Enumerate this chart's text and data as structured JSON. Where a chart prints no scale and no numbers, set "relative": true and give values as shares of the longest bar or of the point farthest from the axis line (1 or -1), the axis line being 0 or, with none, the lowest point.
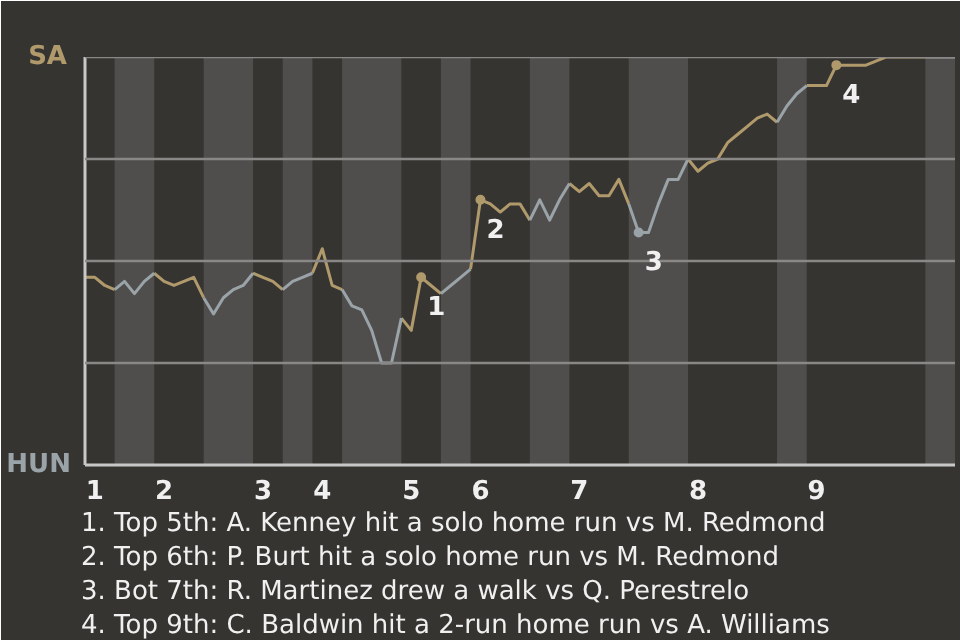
{
  "chart_data": {
    "type": "line",
    "relative": true,
    "categories": [
      null,
      "1",
      null,
      null,
      null,
      null,
      null,
      null,
      "2",
      null,
      null,
      null,
      null,
      null,
      null,
      null,
      null,
      null,
      "3",
      null,
      null,
      null,
      null,
      null,
      "4",
      null,
      null,
      null,
      null,
      null,
      null,
      null,
      null,
      "5",
      null,
      null,
      null,
      null,
      null,
      null,
      "6",
      null,
      null,
      null,
      null,
      null,
      null,
      null,
      null,
      null,
      "7",
      null,
      null,
      null,
      null,
      null,
      null,
      null,
      null,
      null,
      null,
      null,
      "8",
      null,
      null,
      null,
      null,
      null,
      null,
      null,
      null,
      null,
      null,
      null,
      "9",
      null,
      null,
      null,
      null,
      null,
      null,
      null,
      null,
      null,
      null,
      null,
      null,
      null,
      null
    ],
    "series": [
      {
        "color": "#b09a6c",
        "values": [
          0.46,
          0.46,
          0.44,
          0.43,
          null,
          null,
          null,
          0.47,
          0.45,
          0.44,
          0.45,
          0.46,
          0.41,
          null,
          null,
          null,
          null,
          0.47,
          0.46,
          0.45,
          0.43,
          null,
          null,
          0.47,
          0.53,
          0.44,
          0.43,
          null,
          null,
          null,
          null,
          null,
          0.36,
          0.33,
          0.46,
          0.44,
          0.42,
          null,
          null,
          0.48,
          0.65,
          0.64,
          0.62,
          0.64,
          0.64,
          0.6,
          null,
          null,
          null,
          0.69,
          0.67,
          0.69,
          0.66,
          0.66,
          0.7,
          0.64,
          null,
          null,
          null,
          null,
          null,
          0.75,
          0.72,
          0.74,
          0.75,
          0.79,
          0.81,
          0.83,
          0.85,
          0.86,
          0.84,
          null,
          null,
          0.93,
          0.93,
          0.93,
          0.98,
          0.98,
          0.98,
          0.98,
          0.99,
          1.0,
          1.0,
          1.0,
          1.0,
          1.0,
          null,
          null,
          null
        ]
      },
      {
        "color": "#9aa3a8",
        "values": [
          null,
          null,
          null,
          0.43,
          0.45,
          0.42,
          0.45,
          0.47,
          null,
          null,
          null,
          null,
          0.41,
          0.37,
          0.41,
          0.43,
          0.44,
          0.47,
          null,
          null,
          0.43,
          0.45,
          0.46,
          0.47,
          null,
          null,
          0.43,
          0.39,
          0.38,
          0.33,
          0.25,
          0.25,
          0.36,
          null,
          null,
          null,
          0.42,
          0.44,
          0.46,
          0.48,
          null,
          null,
          null,
          null,
          null,
          0.6,
          0.65,
          0.6,
          0.65,
          0.69,
          null,
          null,
          null,
          null,
          null,
          0.64,
          0.57,
          0.57,
          0.64,
          0.7,
          0.7,
          0.75,
          null,
          null,
          null,
          null,
          null,
          null,
          null,
          null,
          0.84,
          0.88,
          0.91,
          0.93,
          null,
          null,
          null,
          null,
          null,
          null,
          null,
          null,
          null,
          null,
          null,
          1.0,
          1.0,
          1.0,
          1.0
        ]
      },
      {
        "type": "scatter",
        "marker": "circle",
        "name": "1",
        "color": "#b09a6c",
        "values": [
          null,
          null,
          null,
          null,
          null,
          null,
          null,
          null,
          null,
          null,
          null,
          null,
          null,
          null,
          null,
          null,
          null,
          null,
          null,
          null,
          null,
          null,
          null,
          null,
          null,
          null,
          null,
          null,
          null,
          null,
          null,
          null,
          null,
          null,
          0.46,
          null,
          null,
          null,
          null,
          null,
          null,
          null,
          null,
          null,
          null,
          null,
          null,
          null,
          null,
          null,
          null,
          null,
          null,
          null,
          null,
          null,
          null,
          null,
          null,
          null,
          null,
          null,
          null,
          null,
          null,
          null,
          null,
          null,
          null,
          null,
          null,
          null,
          null,
          null,
          null,
          null,
          null,
          null,
          null,
          null,
          null,
          null,
          null,
          null,
          null,
          null,
          null,
          null,
          null
        ]
      },
      {
        "type": "scatter",
        "marker": "circle",
        "name": "2",
        "color": "#b09a6c",
        "values": [
          null,
          null,
          null,
          null,
          null,
          null,
          null,
          null,
          null,
          null,
          null,
          null,
          null,
          null,
          null,
          null,
          null,
          null,
          null,
          null,
          null,
          null,
          null,
          null,
          null,
          null,
          null,
          null,
          null,
          null,
          null,
          null,
          null,
          null,
          null,
          null,
          null,
          null,
          null,
          null,
          0.65,
          null,
          null,
          null,
          null,
          null,
          null,
          null,
          null,
          null,
          null,
          null,
          null,
          null,
          null,
          null,
          null,
          null,
          null,
          null,
          null,
          null,
          null,
          null,
          null,
          null,
          null,
          null,
          null,
          null,
          null,
          null,
          null,
          null,
          null,
          null,
          null,
          null,
          null,
          null,
          null,
          null,
          null,
          null,
          null,
          null,
          null,
          null,
          null
        ]
      },
      {
        "type": "scatter",
        "marker": "circle",
        "name": "3",
        "color": "#9aa3a8",
        "values": [
          null,
          null,
          null,
          null,
          null,
          null,
          null,
          null,
          null,
          null,
          null,
          null,
          null,
          null,
          null,
          null,
          null,
          null,
          null,
          null,
          null,
          null,
          null,
          null,
          null,
          null,
          null,
          null,
          null,
          null,
          null,
          null,
          null,
          null,
          null,
          null,
          null,
          null,
          null,
          null,
          null,
          null,
          null,
          null,
          null,
          null,
          null,
          null,
          null,
          null,
          null,
          null,
          null,
          null,
          null,
          null,
          0.57,
          null,
          null,
          null,
          null,
          null,
          null,
          null,
          null,
          null,
          null,
          null,
          null,
          null,
          null,
          null,
          null,
          null,
          null,
          null,
          null,
          null,
          null,
          null,
          null,
          null,
          null,
          null,
          null,
          null,
          null,
          null,
          null
        ]
      },
      {
        "type": "scatter",
        "marker": "circle",
        "name": "4",
        "color": "#b09a6c",
        "values": [
          null,
          null,
          null,
          null,
          null,
          null,
          null,
          null,
          null,
          null,
          null,
          null,
          null,
          null,
          null,
          null,
          null,
          null,
          null,
          null,
          null,
          null,
          null,
          null,
          null,
          null,
          null,
          null,
          null,
          null,
          null,
          null,
          null,
          null,
          null,
          null,
          null,
          null,
          null,
          null,
          null,
          null,
          null,
          null,
          null,
          null,
          null,
          null,
          null,
          null,
          null,
          null,
          null,
          null,
          null,
          null,
          null,
          null,
          null,
          null,
          null,
          null,
          null,
          null,
          null,
          null,
          null,
          null,
          null,
          null,
          null,
          null,
          null,
          null,
          null,
          null,
          0.98,
          null,
          null,
          null,
          null,
          null,
          null,
          null,
          null,
          null,
          null,
          null,
          null
        ]
      }
    ],
    "grid": false,
    "ref_lines": [
      {
        "axis": "y",
        "value": 0.25,
        "color": "#8a8886"
      },
      {
        "axis": "y",
        "value": 0.5,
        "color": "#8a8886"
      },
      {
        "axis": "y",
        "value": 0.75,
        "color": "#8a8886"
      },
      {
        "axis": "y",
        "value": 1,
        "color": "#8a8886"
      }
    ],
    "annotations": [
      "SA",
      "HUN",
      "1. Top 5th: A. Kenney hit a solo home run vs M. Redmond",
      "2. Top 6th: P. Burt hit a solo home run vs M. Redmond",
      "3. Bot 7th: R. Martinez drew a walk vs Q. Perestrelo",
      "4. Top 9th: C. Baldwin hit a 2-run home run vs A. Williams"
    ]
  }
}
